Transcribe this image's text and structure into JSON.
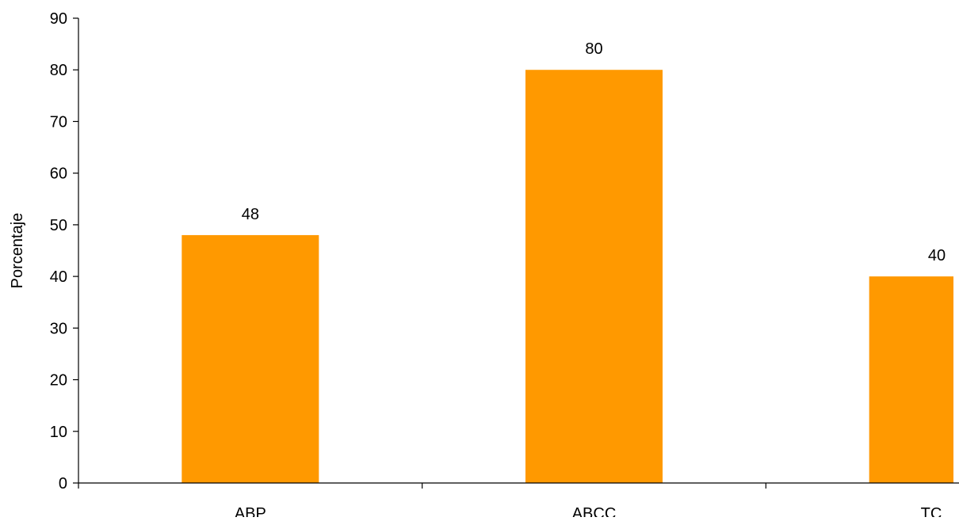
{
  "chart_data": {
    "type": "bar",
    "categories": [
      "ABP",
      "ABCC",
      "TC"
    ],
    "values": [
      48,
      80,
      40
    ],
    "data_labels": [
      "48",
      "80",
      "40"
    ],
    "title": "",
    "xlabel": "",
    "ylabel": "Porcentaje",
    "ylim": [
      0,
      90
    ],
    "yticks": [
      0,
      10,
      20,
      30,
      40,
      50,
      60,
      70,
      80,
      90
    ],
    "ytick_labels": [
      "0",
      "10",
      "20",
      "30",
      "40",
      "50",
      "60",
      "70",
      "80",
      "90"
    ],
    "grid": false,
    "legend": "none",
    "bar_color": "#FF9900"
  }
}
